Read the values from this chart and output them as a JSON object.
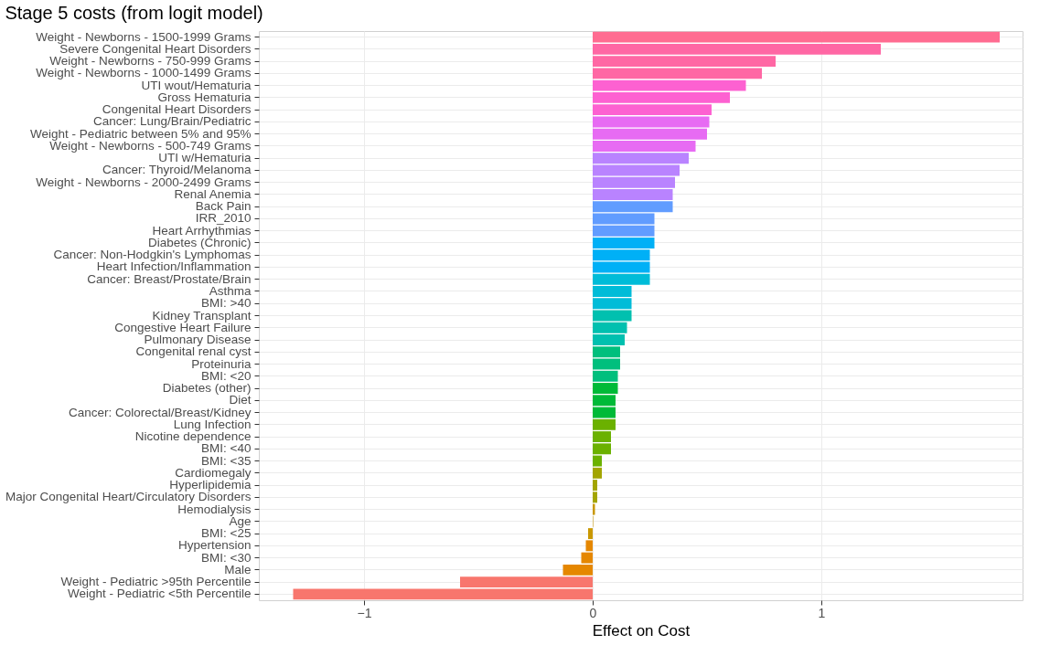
{
  "chart_data": {
    "type": "bar",
    "orientation": "horizontal",
    "title": "Stage 5 costs (from logit model)",
    "xlabel": "Effect on Cost",
    "categories": [
      "Weight - Newborns - 1500-1999 Grams",
      "Severe Congenital Heart Disorders",
      "Weight - Newborns - 750-999 Grams",
      "Weight - Newborns - 1000-1499 Grams",
      "UTI wout/Hematuria",
      "Gross Hematuria",
      "Congenital Heart Disorders",
      "Cancer: Lung/Brain/Pediatric",
      "Weight - Pediatric between 5% and 95%",
      "Weight - Newborns - 500-749 Grams",
      "UTI w/Hematuria",
      "Cancer: Thyroid/Melanoma",
      "Weight - Newborns - 2000-2499 Grams",
      "Renal Anemia",
      "Back Pain",
      "IRR_2010",
      "Heart Arrhythmias",
      "Diabetes (Chronic)",
      "Cancer: Non-Hodgkin's Lymphomas",
      "Heart Infection/Inflammation",
      "Cancer: Breast/Prostate/Brain",
      "Asthma",
      "BMI: >40",
      "Kidney Transplant",
      "Congestive Heart Failure",
      "Pulmonary Disease",
      "Congenital renal cyst",
      "Proteinuria",
      "BMI: <20",
      "Diabetes (other)",
      "Diet",
      "Cancer: Colorectal/Breast/Kidney",
      "Lung Infection",
      "Nicotine dependence",
      "BMI: <40",
      "BMI: <35",
      "Cardiomegaly",
      "Hyperlipidemia",
      "Major Congenital Heart/Circulatory Disorders",
      "Hemodialysis",
      "Age",
      "BMI: <25",
      "Hypertension",
      "BMI: <30",
      "Male",
      "Weight - Pediatric >95th Percentile",
      "Weight - Pediatric <5th Percentile"
    ],
    "values": [
      1.78,
      1.26,
      0.8,
      0.74,
      0.67,
      0.6,
      0.52,
      0.51,
      0.5,
      0.45,
      0.42,
      0.38,
      0.36,
      0.35,
      0.35,
      0.27,
      0.27,
      0.27,
      0.25,
      0.25,
      0.25,
      0.17,
      0.17,
      0.17,
      0.15,
      0.14,
      0.12,
      0.12,
      0.11,
      0.11,
      0.1,
      0.1,
      0.1,
      0.08,
      0.08,
      0.04,
      0.04,
      0.02,
      0.02,
      0.01,
      0.002,
      -0.02,
      -0.03,
      -0.05,
      -0.13,
      -0.58,
      -1.31
    ],
    "colors": [
      "#FF6C91",
      "#FF67A4",
      "#FF67A4",
      "#FF67A4",
      "#FD61D1",
      "#FD61D1",
      "#FD61D1",
      "#E76BF3",
      "#E76BF3",
      "#E76BF3",
      "#B983FF",
      "#B983FF",
      "#B983FF",
      "#B983FF",
      "#619CFF",
      "#619CFF",
      "#619CFF",
      "#00B0F6",
      "#00B0F6",
      "#00B0F6",
      "#00BCD8",
      "#00BCD8",
      "#00BCD8",
      "#00C0AF",
      "#00C0AF",
      "#00C0AF",
      "#00BF7D",
      "#00BF7D",
      "#00BF7D",
      "#00BA38",
      "#00BA38",
      "#00BA38",
      "#6BB100",
      "#6BB100",
      "#6BB100",
      "#6BB100",
      "#A3A500",
      "#A3A500",
      "#A3A500",
      "#C99800",
      "#C99800",
      "#C99800",
      "#E58700",
      "#E58700",
      "#E58700",
      "#F8766D",
      "#F8766D"
    ],
    "xlim": [
      -1.46,
      1.88
    ],
    "xticks": [
      -1,
      0,
      1
    ],
    "grid": true
  }
}
